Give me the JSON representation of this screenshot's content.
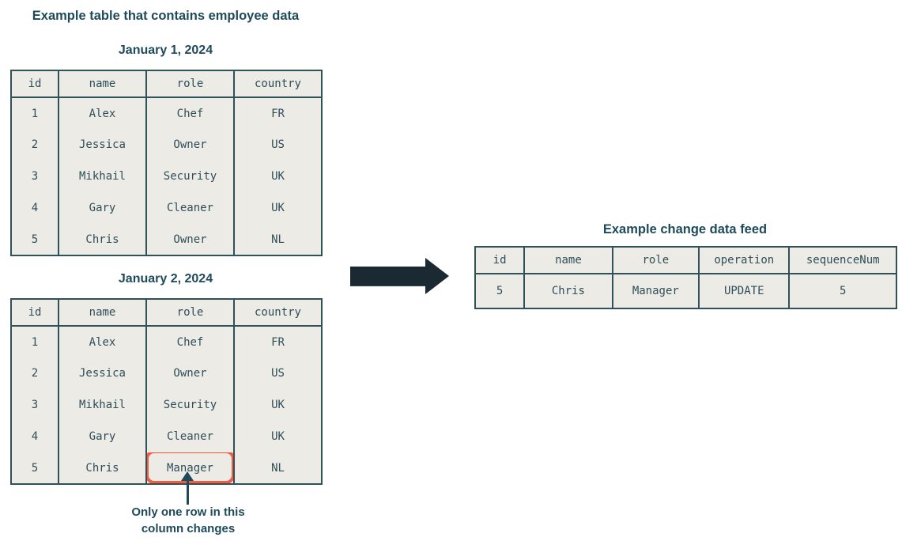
{
  "colors": {
    "heading": "#1E4A5A",
    "text": "#2E4E58",
    "border": "#30505A",
    "table_bg": "#ECEBE6",
    "arrow": "#1B2A32",
    "highlight": "#F15B40",
    "page_bg": "#FFFFFF"
  },
  "left_section": {
    "title": "Example table that contains employee data",
    "tables": [
      {
        "caption": "January 1, 2024",
        "columns": [
          "id",
          "name",
          "role",
          "country"
        ],
        "rows": [
          [
            "1",
            "Alex",
            "Chef",
            "FR"
          ],
          [
            "2",
            "Jessica",
            "Owner",
            "US"
          ],
          [
            "3",
            "Mikhail",
            "Security",
            "UK"
          ],
          [
            "4",
            "Gary",
            "Cleaner",
            "UK"
          ],
          [
            "5",
            "Chris",
            "Owner",
            "NL"
          ]
        ]
      },
      {
        "caption": "January 2, 2024",
        "columns": [
          "id",
          "name",
          "role",
          "country"
        ],
        "rows": [
          [
            "1",
            "Alex",
            "Chef",
            "FR"
          ],
          [
            "2",
            "Jessica",
            "Owner",
            "US"
          ],
          [
            "3",
            "Mikhail",
            "Security",
            "UK"
          ],
          [
            "4",
            "Gary",
            "Cleaner",
            "UK"
          ],
          [
            "5",
            "Chris",
            "Manager",
            "NL"
          ]
        ],
        "highlight": {
          "row": 4,
          "col": 2
        }
      }
    ],
    "annotation": {
      "line1": "Only one row in this",
      "line2": "column changes"
    }
  },
  "right_section": {
    "title": "Example change data feed",
    "table": {
      "columns": [
        "id",
        "name",
        "role",
        "operation",
        "sequenceNum"
      ],
      "rows": [
        [
          "5",
          "Chris",
          "Manager",
          "UPDATE",
          "5"
        ]
      ]
    }
  }
}
